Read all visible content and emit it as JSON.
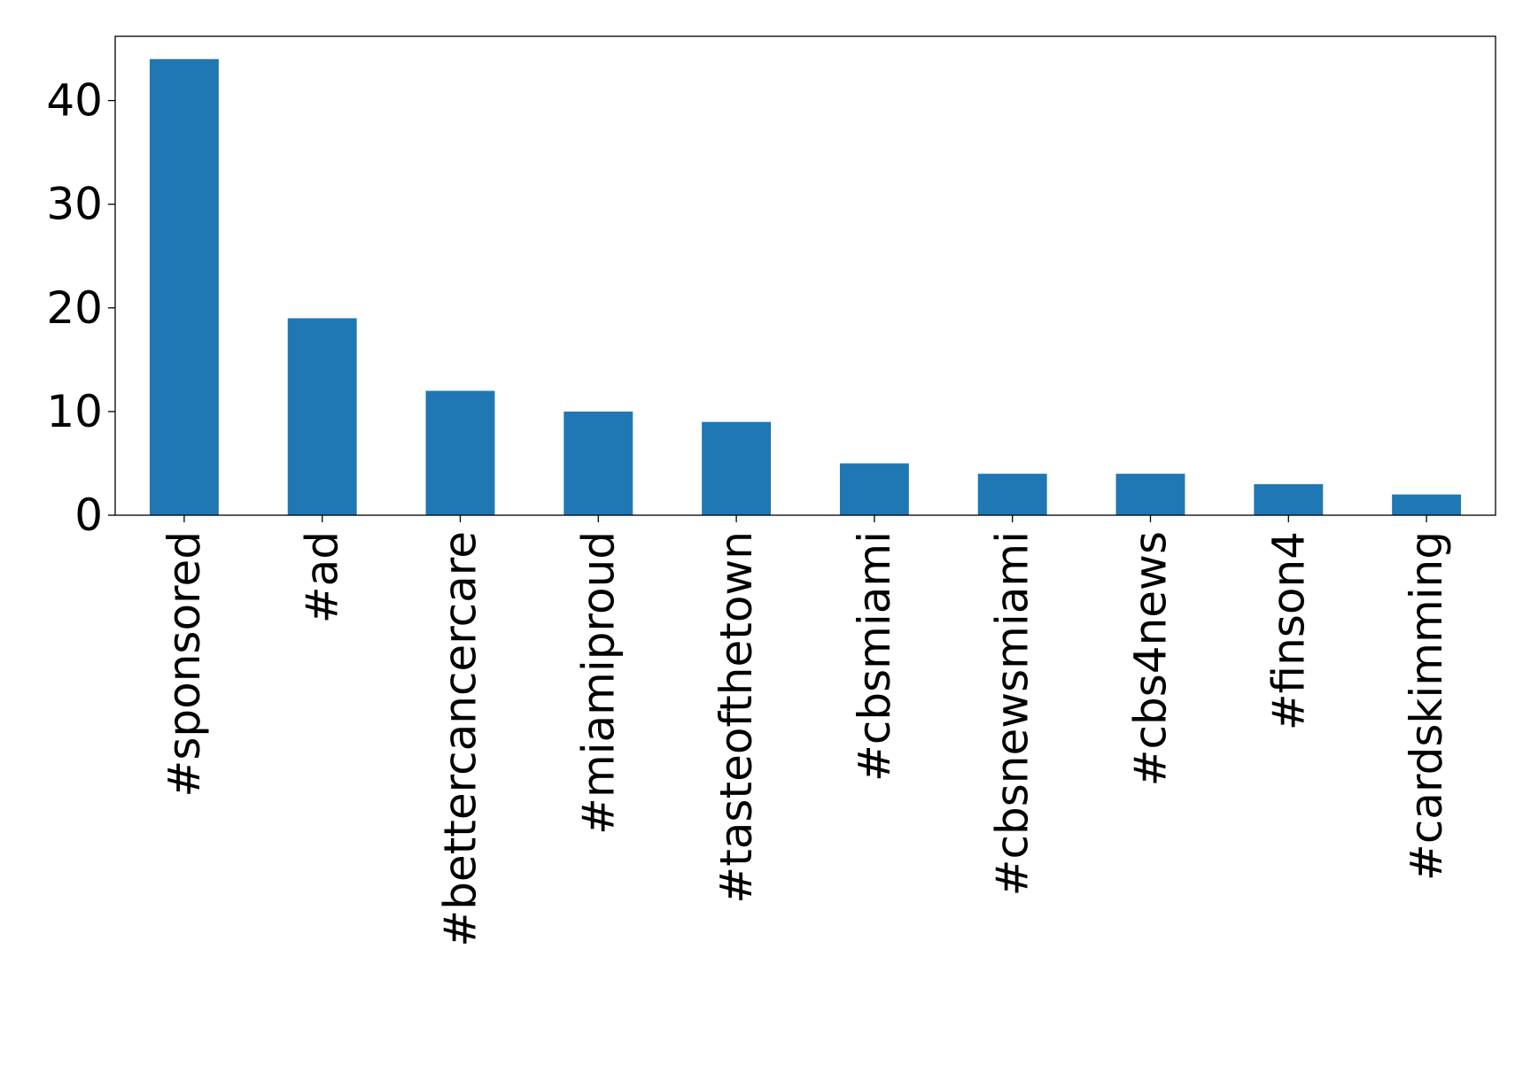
{
  "chart_data": {
    "type": "bar",
    "title": "",
    "xlabel": "",
    "ylabel": "",
    "categories": [
      "#sponsored",
      "#ad",
      "#bettercancercare",
      "#miamiproud",
      "#tasteofthetown",
      "#cbsmiami",
      "#cbsnewsmiami",
      "#cbs4news",
      "#finson4",
      "#cardskimming"
    ],
    "values": [
      44,
      19,
      12,
      10,
      9,
      5,
      4,
      4,
      3,
      2
    ],
    "ylim": [
      0,
      46.2
    ],
    "yticks": [
      0,
      10,
      20,
      30,
      40
    ],
    "bar_color": "#1f77b4",
    "grid": false,
    "legend": "none"
  }
}
